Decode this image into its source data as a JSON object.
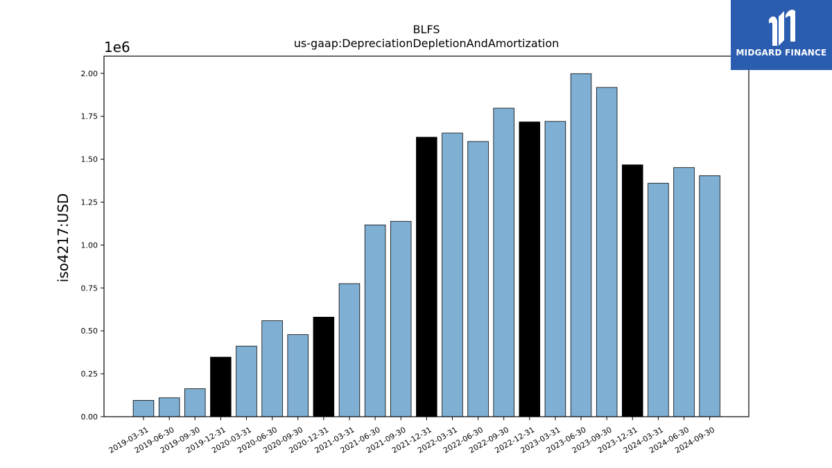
{
  "chart_data": {
    "type": "bar",
    "title": "BLFS",
    "subtitle": "us-gaap:DepreciationDepletionAndAmortization",
    "xlabel": "",
    "ylabel": "iso4217:USD",
    "y_offset_label": "1e6",
    "ylim": [
      0,
      2.1
    ],
    "yticks": [
      "0.00",
      "0.25",
      "0.50",
      "0.75",
      "1.00",
      "1.25",
      "1.50",
      "1.75",
      "2.00"
    ],
    "categories": [
      "2019-03-31",
      "2019-06-30",
      "2019-09-30",
      "2019-12-31",
      "2020-03-31",
      "2020-06-30",
      "2020-09-30",
      "2020-12-31",
      "2021-03-31",
      "2021-06-30",
      "2021-09-30",
      "2021-12-31",
      "2022-03-31",
      "2022-06-30",
      "2022-09-30",
      "2022-12-31",
      "2023-03-31",
      "2023-06-30",
      "2023-09-30",
      "2023-12-31",
      "2024-03-31",
      "2024-06-30",
      "2024-09-30"
    ],
    "values": [
      0.095,
      0.11,
      0.163,
      0.347,
      0.411,
      0.559,
      0.478,
      0.58,
      0.775,
      1.117,
      1.138,
      1.628,
      1.652,
      1.603,
      1.797,
      1.717,
      1.72,
      1.998,
      1.918,
      1.467,
      1.36,
      1.451,
      1.404
    ],
    "bar_colors": [
      "#7fb0d4",
      "#7fb0d4",
      "#7fb0d4",
      "#000000",
      "#7fb0d4",
      "#7fb0d4",
      "#7fb0d4",
      "#000000",
      "#7fb0d4",
      "#7fb0d4",
      "#7fb0d4",
      "#000000",
      "#7fb0d4",
      "#7fb0d4",
      "#7fb0d4",
      "#000000",
      "#7fb0d4",
      "#7fb0d4",
      "#7fb0d4",
      "#000000",
      "#7fb0d4",
      "#7fb0d4",
      "#7fb0d4"
    ],
    "grid": false,
    "legend": "none"
  },
  "logo": {
    "text": "MIDGARD FINANCE",
    "color": "#2a5db0"
  }
}
